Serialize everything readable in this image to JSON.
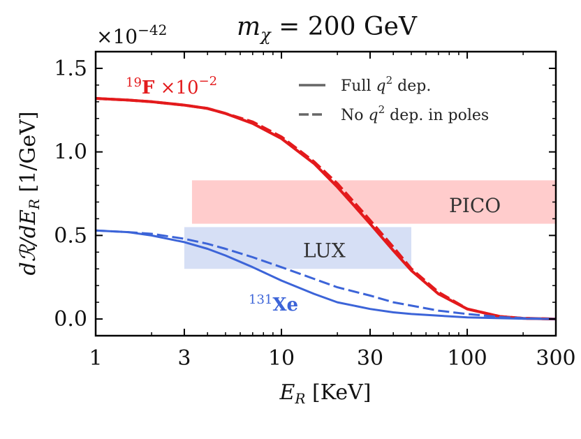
{
  "chart_data": {
    "type": "line",
    "title": "m_χ = 200 GeV",
    "title_parts": {
      "var": "m",
      "sub": "χ",
      "rest": " = 200 GeV"
    },
    "y_multiplier": {
      "base": "×10",
      "exp": "−42"
    },
    "xlabel": {
      "var": "E",
      "sub": "R",
      "rest": " [KeV]"
    },
    "ylabel": "dR/dE_R [1/GeV]",
    "ylabel_parts": {
      "num": "dℛ/dE",
      "sub": "R",
      "rest": " [1/GeV]"
    },
    "xscale": "log",
    "xlim": [
      1,
      300
    ],
    "ylim": [
      -0.1,
      1.6
    ],
    "x_ticks": [
      1,
      3,
      10,
      30,
      100,
      300
    ],
    "x_tick_labels": [
      "1",
      "3",
      "10",
      "30",
      "100",
      "300"
    ],
    "y_ticks": [
      0.0,
      0.5,
      1.0,
      1.5
    ],
    "y_tick_labels": [
      "0.0",
      "0.5",
      "1.0",
      "1.5"
    ],
    "bands": [
      {
        "name": "PICO",
        "label": "PICO",
        "x": [
          3.3,
          300
        ],
        "y": [
          0.57,
          0.83
        ],
        "color": "#ffcccc"
      },
      {
        "name": "LUX",
        "label": "LUX",
        "x": [
          3.0,
          50
        ],
        "y": [
          0.3,
          0.55
        ],
        "color": "#d6dff5"
      }
    ],
    "legend": {
      "position": "top-right",
      "entries": [
        {
          "label_pre": "Full ",
          "var": "q",
          "sup": "2",
          "label_post": " dep.",
          "style": "solid"
        },
        {
          "label_pre": "No ",
          "var": "q",
          "sup": "2",
          "label_post": " dep. in poles",
          "style": "dashed"
        }
      ]
    },
    "series": [
      {
        "name": "19F full",
        "element": "F",
        "style": "solid",
        "color": "#e31a1c",
        "x": [
          1,
          1.5,
          2,
          3,
          4,
          5,
          7,
          10,
          15,
          20,
          25,
          30,
          40,
          50,
          70,
          100,
          150,
          200,
          300
        ],
        "y": [
          1.32,
          1.31,
          1.3,
          1.28,
          1.26,
          1.23,
          1.17,
          1.08,
          0.93,
          0.79,
          0.67,
          0.57,
          0.41,
          0.29,
          0.15,
          0.06,
          0.015,
          0.004,
          0.0
        ]
      },
      {
        "name": "19F no q2 in poles",
        "element": "F",
        "style": "dashed",
        "color": "#e31a1c",
        "x": [
          1,
          1.5,
          2,
          3,
          4,
          5,
          7,
          10,
          15,
          20,
          25,
          30,
          40,
          50,
          70,
          100,
          150,
          200,
          300
        ],
        "y": [
          1.32,
          1.31,
          1.3,
          1.28,
          1.26,
          1.23,
          1.18,
          1.09,
          0.94,
          0.81,
          0.69,
          0.59,
          0.43,
          0.3,
          0.16,
          0.06,
          0.015,
          0.004,
          0.0
        ]
      },
      {
        "name": "131Xe full",
        "element": "Xe",
        "style": "solid",
        "color": "#3c64d8",
        "x": [
          1,
          1.5,
          2,
          3,
          4,
          5,
          7,
          10,
          15,
          20,
          30,
          40,
          50,
          70,
          100,
          150,
          200,
          300
        ],
        "y": [
          0.53,
          0.52,
          0.5,
          0.46,
          0.42,
          0.38,
          0.31,
          0.23,
          0.15,
          0.1,
          0.06,
          0.04,
          0.03,
          0.02,
          0.01,
          0.005,
          0.002,
          0.0
        ]
      },
      {
        "name": "131Xe no q2 in poles",
        "element": "Xe",
        "style": "dashed",
        "color": "#3c64d8",
        "x": [
          1,
          1.5,
          2,
          3,
          4,
          5,
          7,
          10,
          15,
          20,
          30,
          40,
          50,
          70,
          100,
          150,
          200,
          300
        ],
        "y": [
          0.53,
          0.52,
          0.51,
          0.48,
          0.45,
          0.42,
          0.37,
          0.31,
          0.24,
          0.19,
          0.14,
          0.1,
          0.08,
          0.05,
          0.03,
          0.012,
          0.005,
          0.0
        ]
      }
    ],
    "annotations": [
      {
        "name": "fluorine",
        "sup": "19",
        "text": "F",
        "suffix_base": " ×10",
        "suffix_exp": "−2",
        "color": "#e31a1c"
      },
      {
        "name": "xenon",
        "sup": "131",
        "text": "Xe",
        "color": "#3c64d8"
      }
    ]
  }
}
